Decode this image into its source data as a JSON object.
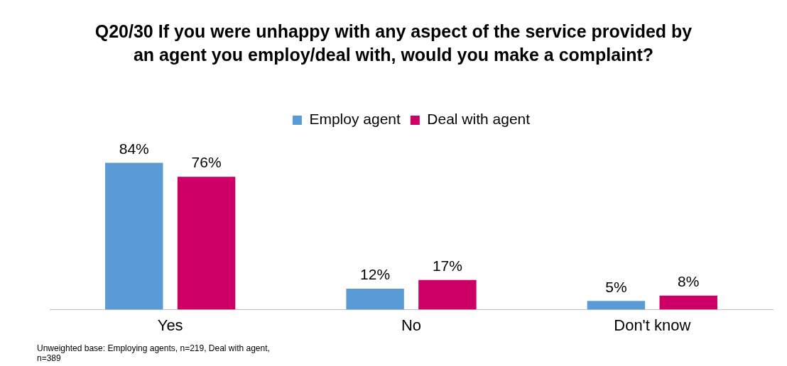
{
  "chart_data": {
    "type": "bar",
    "title": "Q20/30 If you were unhappy with any aspect of the service provided by an agent you employ/deal with, would you make a complaint?",
    "categories": [
      "Yes",
      "No",
      "Don't know"
    ],
    "series": [
      {
        "name": "Employ agent",
        "color": "#5b9bd5",
        "values": [
          84,
          12,
          5
        ],
        "value_labels": [
          "84%",
          "12%",
          "5%"
        ]
      },
      {
        "name": "Deal with agent",
        "color": "#cc0066",
        "values": [
          76,
          17,
          8
        ],
        "value_labels": [
          "76%",
          "17%",
          "8%"
        ]
      }
    ],
    "legend": "top",
    "grid": false,
    "annotations": [
      "Unweighted base: Employing agents, n=219, Deal with agent, n=389"
    ]
  }
}
